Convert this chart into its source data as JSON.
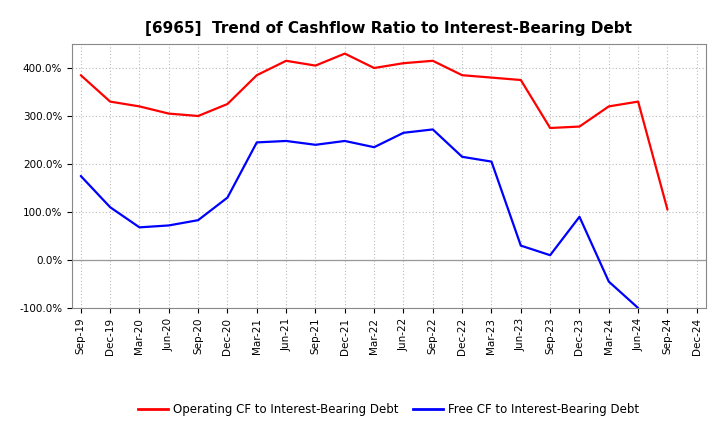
{
  "title": "[6965]  Trend of Cashflow Ratio to Interest-Bearing Debt",
  "x_labels": [
    "Sep-19",
    "Dec-19",
    "Mar-20",
    "Jun-20",
    "Sep-20",
    "Dec-20",
    "Mar-21",
    "Jun-21",
    "Sep-21",
    "Dec-21",
    "Mar-22",
    "Jun-22",
    "Sep-22",
    "Dec-22",
    "Mar-23",
    "Jun-23",
    "Sep-23",
    "Dec-23",
    "Mar-24",
    "Jun-24",
    "Sep-24",
    "Dec-24"
  ],
  "operating_cf": [
    385,
    330,
    320,
    305,
    300,
    325,
    385,
    415,
    405,
    430,
    400,
    410,
    415,
    385,
    380,
    375,
    275,
    278,
    320,
    330,
    105,
    null
  ],
  "free_cf": [
    175,
    110,
    68,
    72,
    83,
    130,
    245,
    248,
    240,
    248,
    235,
    265,
    272,
    215,
    205,
    30,
    10,
    90,
    -45,
    -100,
    null,
    null
  ],
  "operating_color": "#ff0000",
  "free_color": "#0000ff",
  "ylim_min": -100,
  "ylim_max": 450,
  "yticks": [
    -100,
    0,
    100,
    200,
    300,
    400
  ],
  "ytick_labels": [
    "-100.0%",
    "0.0%",
    "100.0%",
    "200.0%",
    "300.0%",
    "400.0%"
  ],
  "legend_operating": "Operating CF to Interest-Bearing Debt",
  "legend_free": "Free CF to Interest-Bearing Debt",
  "background_color": "#ffffff",
  "grid_color": "#bbbbbb",
  "title_fontsize": 11,
  "tick_fontsize": 7.5,
  "legend_fontsize": 8.5,
  "line_width": 1.6
}
